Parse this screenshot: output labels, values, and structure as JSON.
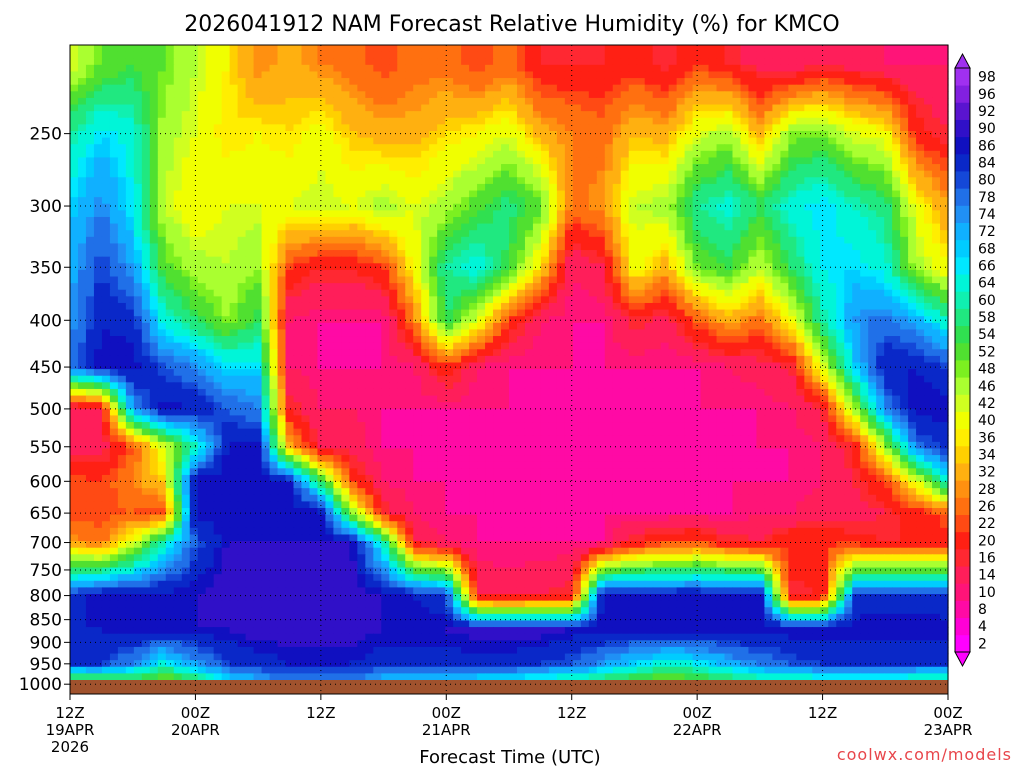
{
  "chart_data": {
    "type": "heatmap",
    "title": "2026041912 NAM Forecast Relative Humidity (%) for KMCO",
    "xlabel": "Forecast Time (UTC)",
    "ylabel": "",
    "credit": "coolwx.com/models",
    "y_axis": {
      "scale": "pressure (log, inverted)",
      "ticks": [
        250,
        300,
        350,
        400,
        450,
        500,
        550,
        600,
        650,
        700,
        750,
        800,
        850,
        900,
        950,
        1000
      ],
      "range": [
        1025,
        200
      ]
    },
    "x_axis": {
      "range_hours": [
        0,
        84
      ],
      "ticks": [
        {
          "hour": 0,
          "top": "12Z",
          "bottom": "19APR",
          "extra": "2026"
        },
        {
          "hour": 12,
          "top": "00Z",
          "bottom": "20APR",
          "extra": ""
        },
        {
          "hour": 24,
          "top": "12Z",
          "bottom": "",
          "extra": ""
        },
        {
          "hour": 36,
          "top": "00Z",
          "bottom": "21APR",
          "extra": ""
        },
        {
          "hour": 48,
          "top": "12Z",
          "bottom": "",
          "extra": ""
        },
        {
          "hour": 60,
          "top": "00Z",
          "bottom": "22APR",
          "extra": ""
        },
        {
          "hour": 72,
          "top": "12Z",
          "bottom": "",
          "extra": ""
        },
        {
          "hour": 84,
          "top": "00Z",
          "bottom": "23APR",
          "extra": ""
        }
      ]
    },
    "grid": true,
    "colorbar": {
      "levels": [
        2,
        4,
        8,
        10,
        14,
        16,
        20,
        22,
        26,
        28,
        32,
        34,
        36,
        40,
        42,
        46,
        48,
        52,
        54,
        58,
        60,
        64,
        66,
        68,
        72,
        74,
        78,
        80,
        84,
        86,
        90,
        92,
        96,
        98
      ],
      "colors": [
        "#ff00ff",
        "#ff00d6",
        "#ff0aa5",
        "#ff1478",
        "#ff1e5a",
        "#ff2832",
        "#ff2014",
        "#ff4a14",
        "#ff7010",
        "#ff9010",
        "#ffb010",
        "#ffd000",
        "#ffee00",
        "#f0ff00",
        "#d0ff20",
        "#aaff30",
        "#7cf020",
        "#50e030",
        "#30e050",
        "#20e880",
        "#10f0b0",
        "#00f5d8",
        "#00e8ff",
        "#00ccff",
        "#10b0ff",
        "#2090f5",
        "#2070e8",
        "#1448d8",
        "#0a28c8",
        "#1010c0",
        "#3010c8",
        "#5a14d0",
        "#8220e0",
        "#a030f0"
      ]
    },
    "profiles_rh": [
      {
        "hour": 0,
        "rh": [
          40,
          58,
          66,
          70,
          72,
          76,
          10,
          10,
          22,
          20,
          28,
          82,
          84,
          80,
          40
        ]
      },
      {
        "hour": 3,
        "rh": [
          48,
          66,
          74,
          80,
          84,
          86,
          14,
          12,
          20,
          20,
          24,
          86,
          84,
          80,
          42
        ]
      },
      {
        "hour": 6,
        "rh": [
          52,
          62,
          64,
          72,
          82,
          86,
          72,
          22,
          26,
          22,
          40,
          86,
          86,
          74,
          46
        ]
      },
      {
        "hour": 9,
        "rh": [
          48,
          44,
          42,
          50,
          62,
          78,
          86,
          40,
          34,
          20,
          60,
          86,
          86,
          62,
          44
        ]
      },
      {
        "hour": 12,
        "rh": [
          42,
          40,
          36,
          44,
          54,
          74,
          84,
          60,
          86,
          86,
          78,
          86,
          86,
          72,
          48
        ]
      },
      {
        "hour": 15,
        "rh": [
          36,
          34,
          40,
          42,
          46,
          66,
          78,
          84,
          86,
          84,
          86,
          88,
          86,
          80,
          60
        ]
      },
      {
        "hour": 18,
        "rh": [
          26,
          36,
          40,
          46,
          54,
          66,
          74,
          86,
          86,
          86,
          86,
          88,
          88,
          82,
          68
        ]
      },
      {
        "hour": 21,
        "rh": [
          30,
          34,
          40,
          20,
          10,
          10,
          16,
          30,
          84,
          86,
          86,
          88,
          88,
          84,
          70
        ]
      },
      {
        "hour": 24,
        "rh": [
          26,
          38,
          42,
          16,
          8,
          8,
          10,
          12,
          54,
          86,
          86,
          88,
          88,
          84,
          70
        ]
      },
      {
        "hour": 27,
        "rh": [
          24,
          32,
          40,
          16,
          8,
          8,
          10,
          12,
          20,
          46,
          86,
          88,
          88,
          84,
          70
        ]
      },
      {
        "hour": 30,
        "rh": [
          20,
          30,
          44,
          20,
          8,
          8,
          8,
          8,
          10,
          16,
          60,
          86,
          86,
          82,
          66
        ]
      },
      {
        "hour": 33,
        "rh": [
          24,
          30,
          40,
          38,
          26,
          10,
          8,
          8,
          8,
          10,
          14,
          84,
          86,
          82,
          66
        ]
      },
      {
        "hour": 36,
        "rh": [
          24,
          34,
          44,
          58,
          54,
          20,
          8,
          8,
          8,
          8,
          10,
          80,
          86,
          82,
          62
        ]
      },
      {
        "hour": 39,
        "rh": [
          20,
          36,
          50,
          64,
          40,
          10,
          8,
          8,
          8,
          8,
          8,
          14,
          88,
          82,
          60
        ]
      },
      {
        "hour": 42,
        "rh": [
          24,
          40,
          56,
          52,
          20,
          8,
          8,
          8,
          8,
          8,
          8,
          12,
          88,
          82,
          58
        ]
      },
      {
        "hour": 45,
        "rh": [
          16,
          30,
          50,
          34,
          10,
          8,
          8,
          8,
          8,
          8,
          8,
          14,
          88,
          80,
          56
        ]
      },
      {
        "hour": 48,
        "rh": [
          16,
          26,
          24,
          10,
          8,
          8,
          8,
          8,
          8,
          8,
          8,
          16,
          86,
          78,
          54
        ]
      },
      {
        "hour": 51,
        "rh": [
          16,
          24,
          28,
          14,
          8,
          8,
          8,
          8,
          8,
          8,
          8,
          86,
          86,
          72,
          50
        ]
      },
      {
        "hour": 54,
        "rh": [
          18,
          32,
          42,
          38,
          16,
          8,
          8,
          8,
          8,
          8,
          16,
          86,
          86,
          66,
          46
        ]
      },
      {
        "hour": 57,
        "rh": [
          14,
          30,
          44,
          30,
          12,
          8,
          8,
          8,
          8,
          8,
          20,
          86,
          86,
          62,
          44
        ]
      },
      {
        "hour": 60,
        "rh": [
          20,
          40,
          58,
          48,
          22,
          8,
          8,
          8,
          8,
          8,
          22,
          86,
          86,
          64,
          46
        ]
      },
      {
        "hour": 63,
        "rh": [
          16,
          44,
          62,
          52,
          30,
          10,
          8,
          8,
          8,
          8,
          16,
          86,
          86,
          70,
          50
        ]
      },
      {
        "hour": 66,
        "rh": [
          12,
          30,
          54,
          42,
          24,
          12,
          8,
          8,
          8,
          10,
          14,
          86,
          86,
          74,
          52
        ]
      },
      {
        "hour": 69,
        "rh": [
          10,
          46,
          62,
          54,
          38,
          14,
          10,
          8,
          8,
          10,
          20,
          14,
          86,
          78,
          54
        ]
      },
      {
        "hour": 72,
        "rh": [
          14,
          48,
          66,
          64,
          58,
          40,
          14,
          10,
          10,
          12,
          20,
          16,
          86,
          80,
          56
        ]
      },
      {
        "hour": 75,
        "rh": [
          12,
          40,
          60,
          66,
          72,
          66,
          44,
          16,
          14,
          12,
          18,
          80,
          86,
          80,
          56
        ]
      },
      {
        "hour": 78,
        "rh": [
          10,
          38,
          56,
          62,
          76,
          84,
          74,
          44,
          20,
          14,
          16,
          82,
          86,
          80,
          56
        ]
      },
      {
        "hour": 81,
        "rh": [
          10,
          18,
          38,
          44,
          70,
          84,
          86,
          76,
          40,
          18,
          16,
          82,
          86,
          80,
          54
        ]
      },
      {
        "hour": 84,
        "rh": [
          10,
          14,
          28,
          36,
          60,
          80,
          86,
          82,
          64,
          22,
          18,
          80,
          86,
          80,
          50
        ]
      }
    ],
    "profile_levels_hpa": [
      210,
      250,
      300,
      350,
      400,
      450,
      500,
      550,
      600,
      650,
      700,
      800,
      870,
      950,
      1000
    ]
  }
}
